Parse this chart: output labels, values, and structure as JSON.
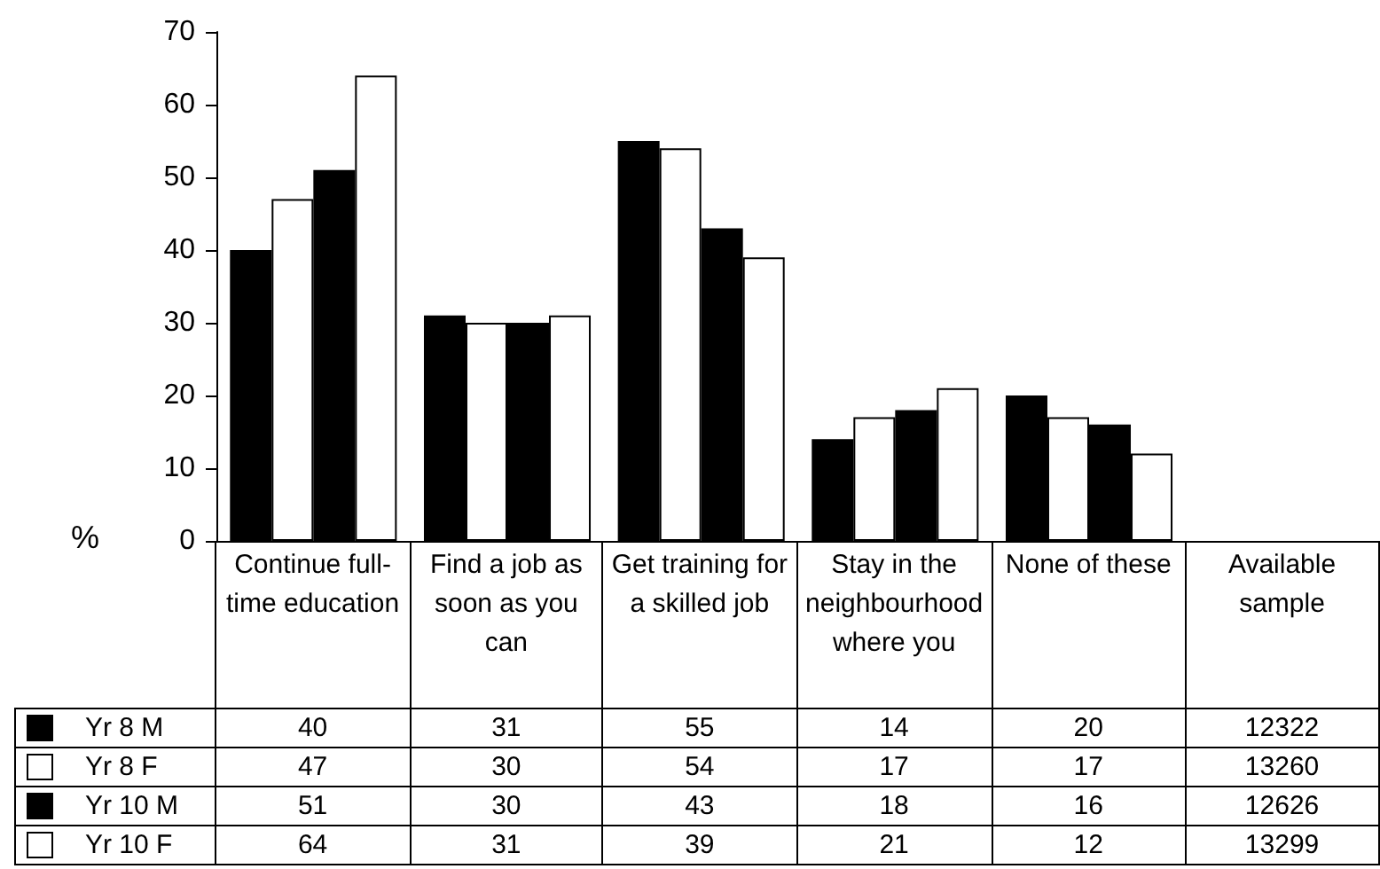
{
  "chart_data": {
    "type": "bar",
    "ylabel": "%",
    "categories": [
      "Continue full-time education",
      "Find a job as soon as you can",
      "Get training for a skilled job",
      "Stay in the neighbourhood where you",
      "None of these",
      "Available sample"
    ],
    "series": [
      {
        "name": "Yr 8 M",
        "color": "#000000",
        "values": [
          40,
          31,
          55,
          14,
          20,
          null
        ],
        "value_labels": [
          "40",
          "31",
          "55",
          "14",
          "20",
          "12322"
        ]
      },
      {
        "name": "Yr 8 F",
        "color": "#ffffff",
        "values": [
          47,
          30,
          54,
          17,
          17,
          null
        ],
        "value_labels": [
          "47",
          "30",
          "54",
          "17",
          "17",
          "13260"
        ]
      },
      {
        "name": "Yr 10 M",
        "color": "#000000",
        "values": [
          51,
          30,
          43,
          18,
          16,
          null
        ],
        "value_labels": [
          "51",
          "30",
          "43",
          "18",
          "16",
          "12626"
        ]
      },
      {
        "name": "Yr 10 F",
        "color": "#ffffff",
        "values": [
          64,
          31,
          39,
          21,
          12,
          null
        ],
        "value_labels": [
          "64",
          "31",
          "39",
          "21",
          "12",
          "13299"
        ]
      }
    ],
    "ylim": [
      0,
      70
    ],
    "yticks": [
      0,
      10,
      20,
      30,
      40,
      50,
      60,
      70
    ],
    "grid": false,
    "legend": "bottom left"
  }
}
